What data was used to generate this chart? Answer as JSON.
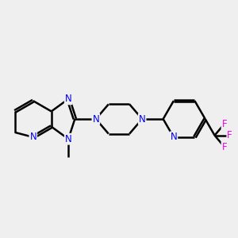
{
  "bg_color": "#efefef",
  "bond_color": "#000000",
  "n_color": "#0000ee",
  "f_color": "#ee00ee",
  "bond_width": 1.8,
  "dbo": 0.045,
  "font_size": 8.5,
  "figsize": [
    3.0,
    3.0
  ],
  "dpi": 100,
  "xlim": [
    -3.5,
    4.5
  ],
  "ylim": [
    -2.0,
    2.0
  ]
}
